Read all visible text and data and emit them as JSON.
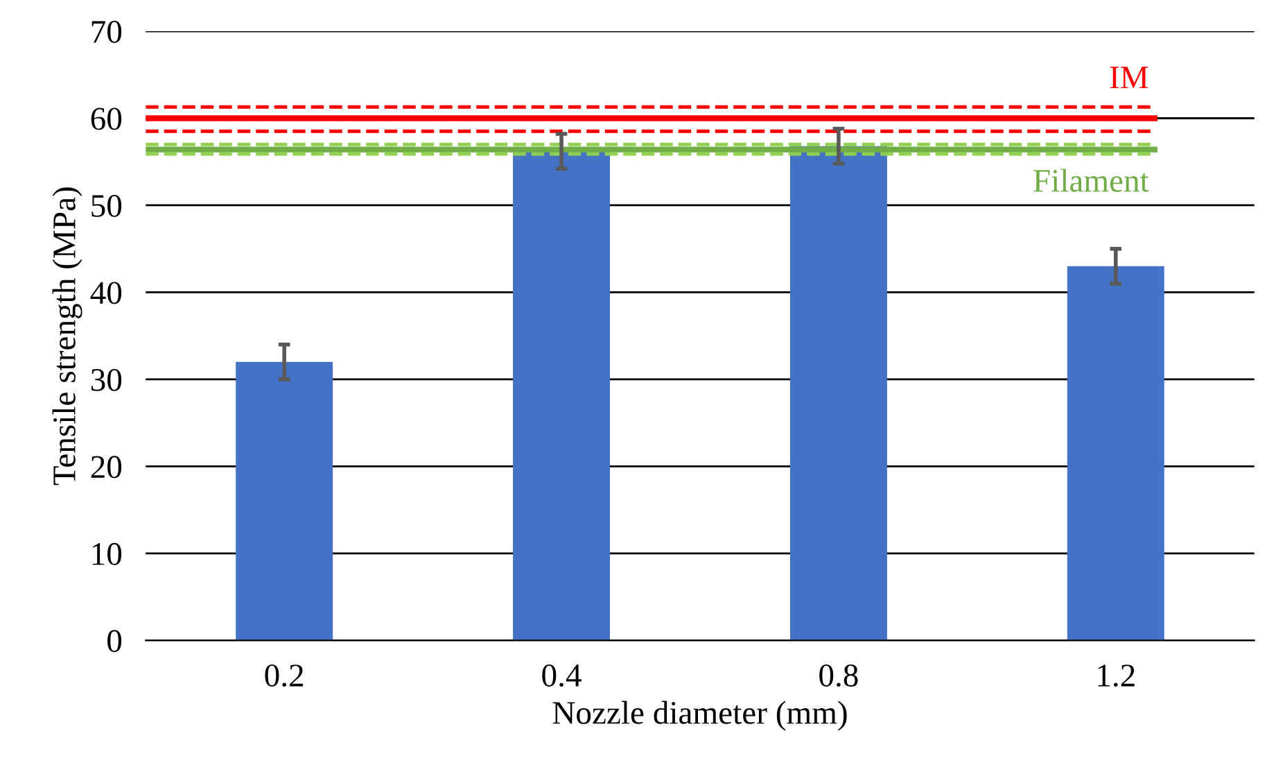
{
  "chart_data": {
    "type": "bar",
    "xlabel": "Nozzle diameter (mm)",
    "ylabel": "Tensile strength (MPa)",
    "categories": [
      "0.2",
      "0.4",
      "0.8",
      "1.2"
    ],
    "values": [
      32,
      56.2,
      56.8,
      43
    ],
    "errors": [
      2,
      2,
      2,
      2
    ],
    "color": "#4472c4",
    "ylim": [
      0,
      70
    ],
    "yticks": [
      0,
      10,
      20,
      30,
      40,
      50,
      60,
      70
    ],
    "grid": "y",
    "ref_lines": [
      {
        "axis": "y",
        "value": 60,
        "label": "IM",
        "color": "#ff0000",
        "line_style": "solid"
      },
      {
        "axis": "y",
        "value": 61.3,
        "label": null,
        "color": "#ff0000",
        "line_style": "dashed"
      },
      {
        "axis": "y",
        "value": 58.5,
        "label": null,
        "color": "#ff0000",
        "line_style": "dashed"
      },
      {
        "axis": "y",
        "value": 56.4,
        "label": "Filament",
        "color": "#70ad47",
        "line_style": "solid"
      },
      {
        "axis": "y",
        "value": 57,
        "label": null,
        "color": "#92d050",
        "line_style": "dashed"
      },
      {
        "axis": "y",
        "value": 55.9,
        "label": null,
        "color": "#92d050",
        "line_style": "dashed"
      }
    ]
  }
}
